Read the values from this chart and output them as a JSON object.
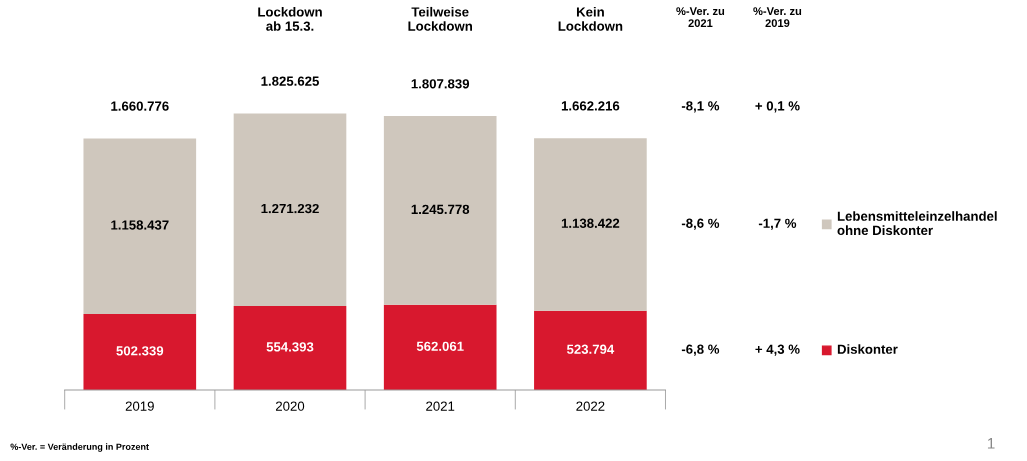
{
  "chart_data": {
    "type": "bar",
    "stacked": true,
    "categories": [
      "2019",
      "2020",
      "2021",
      "2022"
    ],
    "series": [
      {
        "name": "Diskonter",
        "color": "#d8182e",
        "values": [
          502339,
          554393,
          562061,
          523794
        ],
        "value_labels": [
          "502.339",
          "554.393",
          "562.061",
          "523.794"
        ]
      },
      {
        "name": "Lebensmitteleinzelhandel\nohne Diskonter",
        "color": "#cfc7bd",
        "values": [
          1158437,
          1271232,
          1245778,
          1138422
        ],
        "value_labels": [
          "1.158.437",
          "1.271.232",
          "1.245.778",
          "1.138.422"
        ]
      }
    ],
    "totals": [
      "1.660.776",
      "1.825.625",
      "1.807.839",
      "1.662.216"
    ],
    "legend": "right",
    "annotations": [
      "Lockdown\nab 15.3.",
      "Teilweise\nLockdown",
      "Kein\nLockdown",
      "%-Ver. zu\n2021",
      "%-Ver. zu\n2019",
      "-8,1 %",
      "+ 0,1 %",
      "-8,6 %",
      "-1,7 %",
      "-6,8 %",
      "+ 4,3 %",
      "%-Ver. = Veränderung in Prozent",
      "1"
    ]
  }
}
